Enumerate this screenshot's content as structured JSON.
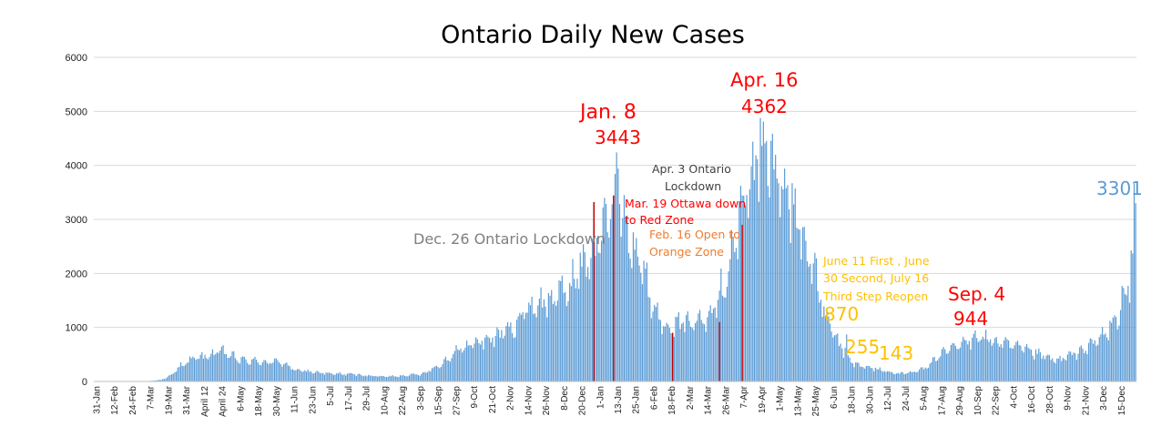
{
  "chart_data": {
    "type": "bar",
    "title": "Ontario Daily New Cases",
    "xlabel": "",
    "ylabel": "",
    "ylim": [
      0,
      6000
    ],
    "yticks": [
      0,
      1000,
      2000,
      3000,
      4000,
      5000,
      6000
    ],
    "grid": true,
    "legend": "none",
    "x_start": "2020-01-31",
    "x_end": "2021-12-19",
    "xtick_labels": [
      "31-Jan",
      "12-Feb",
      "24-Feb",
      "7-Mar",
      "19-Mar",
      "31-Mar",
      "April 12",
      "April 24",
      "6-May",
      "18-May",
      "30-May",
      "11-Jun",
      "23-Jun",
      "5-Jul",
      "17-Jul",
      "29-Jul",
      "10-Aug",
      "22-Aug",
      "3-Sep",
      "15-Sep",
      "27-Sep",
      "9-Oct",
      "21-Oct",
      "2-Nov",
      "14-Nov",
      "26-Nov",
      "8-Dec",
      "20-Dec",
      "1-Jan",
      "13-Jan",
      "25-Jan",
      "6-Feb",
      "18-Feb",
      "2-Mar",
      "14-Mar",
      "26-Mar",
      "7-Apr",
      "19-Apr",
      "1-May",
      "13-May",
      "25-May",
      "6-Jun",
      "18-Jun",
      "30-Jun",
      "12-Jul",
      "24-Jul",
      "5-Aug",
      "17-Aug",
      "29-Aug",
      "10-Sep",
      "22-Sep",
      "4-Oct",
      "16-Oct",
      "28-Oct",
      "9-Nov",
      "21-Nov",
      "3-Dec",
      "15-Dec"
    ],
    "series": [
      {
        "color": "#5b9bd5",
        "trend_knots": [
          [
            "2020-01-31",
            0
          ],
          [
            "2020-02-29",
            0
          ],
          [
            "2020-03-07",
            8
          ],
          [
            "2020-03-15",
            30
          ],
          [
            "2020-03-22",
            120
          ],
          [
            "2020-03-29",
            320
          ],
          [
            "2020-04-05",
            420
          ],
          [
            "2020-04-14",
            470
          ],
          [
            "2020-04-24",
            560
          ],
          [
            "2020-05-06",
            400
          ],
          [
            "2020-05-18",
            370
          ],
          [
            "2020-05-30",
            360
          ],
          [
            "2020-06-06",
            320
          ],
          [
            "2020-06-11",
            210
          ],
          [
            "2020-06-23",
            180
          ],
          [
            "2020-07-05",
            140
          ],
          [
            "2020-07-17",
            140
          ],
          [
            "2020-07-29",
            110
          ],
          [
            "2020-08-10",
            90
          ],
          [
            "2020-08-22",
            110
          ],
          [
            "2020-09-03",
            140
          ],
          [
            "2020-09-15",
            300
          ],
          [
            "2020-09-27",
            580
          ],
          [
            "2020-10-09",
            720
          ],
          [
            "2020-10-21",
            820
          ],
          [
            "2020-11-02",
            1000
          ],
          [
            "2020-11-14",
            1400
          ],
          [
            "2020-11-26",
            1500
          ],
          [
            "2020-12-08",
            1700
          ],
          [
            "2020-12-20",
            2200
          ],
          [
            "2020-12-31",
            2700
          ],
          [
            "2021-01-08",
            3400
          ],
          [
            "2021-01-13",
            3200
          ],
          [
            "2021-01-20",
            2700
          ],
          [
            "2021-01-25",
            2300
          ],
          [
            "2021-02-02",
            1500
          ],
          [
            "2021-02-10",
            1050
          ],
          [
            "2021-02-18",
            1050
          ],
          [
            "2021-02-28",
            1100
          ],
          [
            "2021-03-08",
            1150
          ],
          [
            "2021-03-14",
            1400
          ],
          [
            "2021-03-22",
            1800
          ],
          [
            "2021-03-29",
            2600
          ],
          [
            "2021-04-04",
            3300
          ],
          [
            "2021-04-10",
            4000
          ],
          [
            "2021-04-16",
            4400
          ],
          [
            "2021-04-22",
            4000
          ],
          [
            "2021-04-30",
            3700
          ],
          [
            "2021-05-07",
            3200
          ],
          [
            "2021-05-13",
            2700
          ],
          [
            "2021-05-20",
            2100
          ],
          [
            "2021-05-27",
            1300
          ],
          [
            "2021-06-01",
            950
          ],
          [
            "2021-06-06",
            700
          ],
          [
            "2021-06-13",
            420
          ],
          [
            "2021-06-18",
            300
          ],
          [
            "2021-06-30",
            230
          ],
          [
            "2021-07-12",
            160
          ],
          [
            "2021-07-24",
            160
          ],
          [
            "2021-08-01",
            250
          ],
          [
            "2021-08-10",
            450
          ],
          [
            "2021-08-20",
            620
          ],
          [
            "2021-08-29",
            720
          ],
          [
            "2021-09-04",
            850
          ],
          [
            "2021-09-10",
            800
          ],
          [
            "2021-09-22",
            700
          ],
          [
            "2021-10-04",
            620
          ],
          [
            "2021-10-16",
            500
          ],
          [
            "2021-10-28",
            380
          ],
          [
            "2021-11-09",
            520
          ],
          [
            "2021-11-21",
            700
          ],
          [
            "2021-11-30",
            920
          ],
          [
            "2021-12-06",
            1150
          ],
          [
            "2021-12-10",
            1500
          ],
          [
            "2021-12-15",
            1800
          ],
          [
            "2021-12-17",
            2400
          ],
          [
            "2021-12-18",
            3100
          ],
          [
            "2021-12-19",
            3301
          ]
        ],
        "peaks": [
          [
            "2021-01-08",
            3443
          ],
          [
            "2021-01-10",
            4240
          ],
          [
            "2021-01-11",
            3940
          ],
          [
            "2021-04-16",
            4362
          ],
          [
            "2021-04-17",
            4810
          ],
          [
            "2021-04-19",
            4450
          ],
          [
            "2021-06-11",
            870
          ],
          [
            "2021-06-30",
            255
          ],
          [
            "2021-07-16",
            143
          ],
          [
            "2021-09-04",
            944
          ],
          [
            "2021-12-19",
            3301
          ]
        ]
      },
      {
        "name": "markers",
        "color": "#c00000",
        "points": [
          [
            "2020-12-26",
            3320
          ],
          [
            "2021-01-08",
            3443
          ],
          [
            "2021-02-16",
            900
          ],
          [
            "2021-03-19",
            1100
          ],
          [
            "2021-04-03",
            2900
          ]
        ]
      }
    ],
    "annotations": [
      {
        "text": "Jan. 8",
        "color": "#ff0000",
        "size": 22
      },
      {
        "text": "3443",
        "color": "#ff0000",
        "size": 20
      },
      {
        "text": "Apr. 16",
        "color": "#ff0000",
        "size": 21
      },
      {
        "text": "4362",
        "color": "#ff0000",
        "size": 20
      },
      {
        "text": "Apr. 3 Ontario",
        "color": "#404040",
        "size": 12.5
      },
      {
        "text": "Lockdown",
        "color": "#404040",
        "size": 12.5
      },
      {
        "text": "Mar. 19 Ottawa down",
        "color": "#ff0000",
        "size": 12.5
      },
      {
        "text": "to Red Zone",
        "color": "#ff0000",
        "size": 12.5
      },
      {
        "text": "Feb. 16 Open to",
        "color": "#ed7d31",
        "size": 12.5
      },
      {
        "text": "Orange Zone",
        "color": "#ed7d31",
        "size": 12.5
      },
      {
        "text": "Dec. 26 Ontario Lockdown",
        "color": "#7f7f7f",
        "size": 16
      },
      {
        "text": "June 11 First , June",
        "color": "#ffc000",
        "size": 12.5
      },
      {
        "text": "30 Second, July 16",
        "color": "#ffc000",
        "size": 12.5
      },
      {
        "text": "Third Step Reopen",
        "color": "#ffc000",
        "size": 12.5
      },
      {
        "text": "870",
        "color": "#ffc000",
        "size": 20
      },
      {
        "text": "255",
        "color": "#ffc000",
        "size": 20
      },
      {
        "text": "143",
        "color": "#ffc000",
        "size": 20
      },
      {
        "text": "Sep. 4",
        "color": "#ff0000",
        "size": 20
      },
      {
        "text": "944",
        "color": "#ff0000",
        "size": 20
      },
      {
        "text": "3301",
        "color": "#5b9bd5",
        "size": 20
      }
    ]
  }
}
